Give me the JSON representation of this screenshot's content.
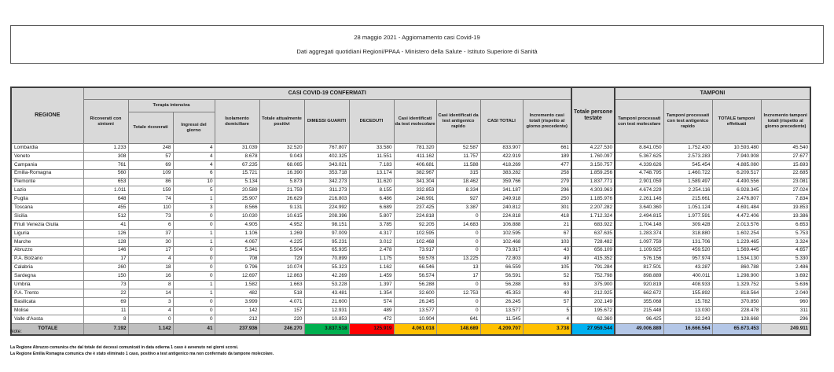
{
  "title": {
    "line1": "28 maggio 2021 - Aggiornamento casi Covid-19",
    "line2": "Dati aggregati quotidiani Regioni/PPAA - Ministero della Salute - Istituto Superiore di Sanità"
  },
  "table": {
    "banner_confirmed": "CASI COVID-19 CONFERMATI",
    "banner_tamponi": "TAMPONI",
    "col_regione": "REGIONE",
    "col_terapia_intensiva": "Terapia intensiva",
    "headers": [
      "Ricoverati con sintomi",
      "Totale ricoverati",
      "Ingressi del giorno",
      "Isolamento domiciliare",
      "Totale attualmente positivi",
      "DIMESSI GUARITI",
      "DECEDUTI",
      "Casi identificati da test molecolare",
      "Casi identificati da test antigenico rapido",
      "CASI TOTALI",
      "Incremento casi totali (rispetto al giorno precedente)",
      "Totale persone testate",
      "Tamponi processati con test molecolare",
      "Tamponi processati con test antigenico rapido",
      "TOTALE tamponi effettuati",
      "Incremento tamponi totali (rispetto al giorno precedente)"
    ],
    "rows": [
      {
        "regione": "Lombardia",
        "values": [
          "1.233",
          "248",
          "4",
          "31.039",
          "32.520",
          "767.807",
          "33.580",
          "781.320",
          "52.587",
          "833.907",
          "661",
          "4.227.530",
          "8.841.050",
          "1.752.430",
          "10.593.480",
          "45.540"
        ]
      },
      {
        "regione": "Veneto",
        "values": [
          "308",
          "57",
          "4",
          "8.678",
          "9.043",
          "402.325",
          "11.551",
          "411.162",
          "11.757",
          "422.919",
          "189",
          "1.760.097",
          "5.367.625",
          "2.573.283",
          "7.940.908",
          "27.677"
        ]
      },
      {
        "regione": "Campania",
        "values": [
          "761",
          "69",
          "4",
          "67.235",
          "68.065",
          "343.021",
          "7.183",
          "406.681",
          "11.588",
          "418.269",
          "477",
          "3.150.757",
          "4.339.626",
          "545.454",
          "4.885.080",
          "15.693"
        ]
      },
      {
        "regione": "Emilia-Romagna",
        "values": [
          "560",
          "109",
          "6",
          "15.721",
          "16.390",
          "353.718",
          "13.174",
          "382.967",
          "315",
          "383.282",
          "258",
          "1.859.256",
          "4.748.795",
          "1.460.722",
          "6.209.517",
          "22.685"
        ]
      },
      {
        "regione": "Piemonte",
        "values": [
          "653",
          "86",
          "10",
          "5.134",
          "5.873",
          "342.273",
          "11.620",
          "341.304",
          "18.462",
          "359.766",
          "279",
          "1.837.771",
          "2.901.059",
          "1.589.497",
          "4.490.556",
          "23.081"
        ]
      },
      {
        "regione": "Lazio",
        "values": [
          "1.011",
          "159",
          "5",
          "20.589",
          "21.759",
          "311.273",
          "8.155",
          "332.853",
          "8.334",
          "341.187",
          "296",
          "4.303.963",
          "4.674.229",
          "2.254.116",
          "6.928.345",
          "27.024"
        ]
      },
      {
        "regione": "Puglia",
        "values": [
          "648",
          "74",
          "1",
          "25.907",
          "26.629",
          "216.803",
          "6.486",
          "248.991",
          "927",
          "249.918",
          "250",
          "1.185.976",
          "2.261.146",
          "215.661",
          "2.476.807",
          "7.834"
        ]
      },
      {
        "regione": "Toscana",
        "values": [
          "455",
          "110",
          "3",
          "8.566",
          "9.131",
          "224.992",
          "6.689",
          "237.425",
          "3.387",
          "240.812",
          "301",
          "2.207.282",
          "3.640.360",
          "1.051.124",
          "4.691.484",
          "19.853"
        ]
      },
      {
        "regione": "Sicilia",
        "values": [
          "512",
          "73",
          "0",
          "10.030",
          "10.615",
          "208.396",
          "5.807",
          "224.818",
          "0",
          "224.818",
          "418",
          "1.712.324",
          "2.494.815",
          "1.977.591",
          "4.472.406",
          "19.386"
        ]
      },
      {
        "regione": "Friuli Venezia Giulia",
        "values": [
          "41",
          "6",
          "0",
          "4.905",
          "4.952",
          "98.151",
          "3.785",
          "92.205",
          "14.683",
          "106.888",
          "21",
          "683.922",
          "1.704.148",
          "309.428",
          "2.013.576",
          "6.653"
        ]
      },
      {
        "regione": "Liguria",
        "values": [
          "126",
          "37",
          "1",
          "1.106",
          "1.269",
          "97.009",
          "4.317",
          "102.595",
          "0",
          "102.595",
          "67",
          "637.635",
          "1.283.374",
          "318.880",
          "1.602.254",
          "5.753"
        ]
      },
      {
        "regione": "Marche",
        "values": [
          "128",
          "30",
          "1",
          "4.067",
          "4.225",
          "95.231",
          "3.012",
          "102.468",
          "0",
          "102.468",
          "103",
          "728.482",
          "1.097.759",
          "131.706",
          "1.229.465",
          "3.324"
        ]
      },
      {
        "regione": "Abruzzo",
        "values": [
          "146",
          "17",
          "0",
          "5.341",
          "5.504",
          "65.935",
          "2.478",
          "73.917",
          "0",
          "73.917",
          "43",
          "656.109",
          "1.109.925",
          "459.520",
          "1.569.445",
          "4.657"
        ]
      },
      {
        "regione": "P.A. Bolzano",
        "values": [
          "17",
          "4",
          "0",
          "708",
          "729",
          "70.899",
          "1.175",
          "59.578",
          "13.225",
          "72.803",
          "49",
          "415.352",
          "576.156",
          "957.974",
          "1.534.130",
          "5.330"
        ]
      },
      {
        "regione": "Calabria",
        "values": [
          "260",
          "18",
          "0",
          "9.796",
          "10.074",
          "55.323",
          "1.162",
          "66.546",
          "13",
          "66.559",
          "105",
          "791.284",
          "817.501",
          "43.287",
          "860.788",
          "2.486"
        ]
      },
      {
        "regione": "Sardegna",
        "values": [
          "150",
          "16",
          "0",
          "12.697",
          "12.863",
          "42.269",
          "1.459",
          "56.574",
          "17",
          "56.591",
          "52",
          "752.798",
          "898.889",
          "400.011",
          "1.298.900",
          "3.692"
        ]
      },
      {
        "regione": "Umbria",
        "values": [
          "73",
          "8",
          "1",
          "1.582",
          "1.663",
          "53.228",
          "1.397",
          "56.288",
          "0",
          "56.288",
          "63",
          "375.900",
          "920.819",
          "408.933",
          "1.329.752",
          "5.636"
        ]
      },
      {
        "regione": "P.A. Trento",
        "values": [
          "22",
          "14",
          "1",
          "482",
          "518",
          "43.481",
          "1.354",
          "32.600",
          "12.753",
          "45.353",
          "40",
          "212.925",
          "662.672",
          "155.892",
          "818.564",
          "2.040"
        ]
      },
      {
        "regione": "Basilicata",
        "values": [
          "69",
          "3",
          "0",
          "3.999",
          "4.071",
          "21.600",
          "574",
          "26.245",
          "0",
          "26.245",
          "57",
          "202.149",
          "355.068",
          "15.782",
          "370.850",
          "960"
        ]
      },
      {
        "regione": "Molise",
        "values": [
          "11",
          "4",
          "0",
          "142",
          "157",
          "12.931",
          "489",
          "13.577",
          "0",
          "13.577",
          "5",
          "195.672",
          "215.448",
          "13.030",
          "228.478",
          "311"
        ]
      },
      {
        "regione": "Valle d'Aosta",
        "values": [
          "8",
          "0",
          "0",
          "212",
          "220",
          "10.853",
          "472",
          "10.904",
          "641",
          "11.545",
          "4",
          "62.360",
          "96.425",
          "32.243",
          "128.668",
          "296"
        ]
      }
    ],
    "total": {
      "label": "TOTALE",
      "values": [
        "7.192",
        "1.142",
        "41",
        "237.936",
        "246.270",
        "3.837.518",
        "125.919",
        "4.061.018",
        "148.689",
        "4.209.707",
        "3.738",
        "27.959.544",
        "49.006.889",
        "16.666.564",
        "65.673.453",
        "249.911"
      ]
    }
  },
  "notes": {
    "title": "Note:",
    "lines": [
      "La Regione Abruzzo comunica che dal totale dei decessi comunicati in data odierna 1 caso è avvenuto nei giorni scorsi.",
      "La Regione Emilia Romagna comunica che è stato eliminato 1 caso, positivo a test antigenico ma non confermato da tampone molecolare."
    ]
  },
  "colors": {
    "green": "#00b050",
    "red": "#ff0000",
    "yellow": "#ffc000",
    "cyan": "#00b0f0",
    "light_blue": "#b4c7e7",
    "header_gray": "#d9d9d9",
    "regione_gray": "#a6a6a6",
    "total_row_gray": "#bfbfbf"
  }
}
